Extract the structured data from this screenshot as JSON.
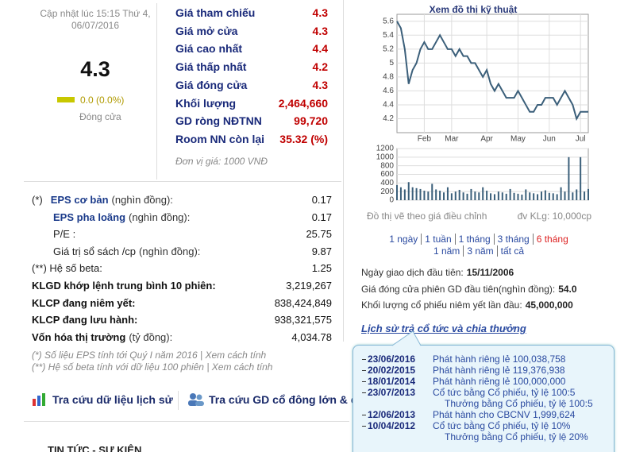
{
  "quote": {
    "updated": "Cập nhật lúc 15:15 Thứ 4, 06/07/2016",
    "price": "4.3",
    "change": "0.0 (0.0%)",
    "status": "Đóng cửa"
  },
  "prices": {
    "rows": [
      [
        "Giá tham chiếu",
        "4.3"
      ],
      [
        "Giá mở cửa",
        "4.3"
      ],
      [
        "Giá cao nhất",
        "4.4"
      ],
      [
        "Giá thấp nhất",
        "4.2"
      ],
      [
        "Giá đóng cửa",
        "4.3"
      ],
      [
        "Khối lượng",
        "2,464,660"
      ],
      [
        "GD ròng NĐTNN",
        "99,720"
      ],
      [
        "Room NN còn lại",
        "35.32 (%)"
      ]
    ],
    "unit_note": "Đơn vị giá: 1000 VNĐ"
  },
  "stats": {
    "rows": [
      {
        "prefix": "(*)",
        "label": "EPS cơ bản",
        "unit": "(nghìn đồng):",
        "value": "0.17"
      },
      {
        "label": "EPS pha loãng",
        "unit": "(nghìn đồng):",
        "value": "0.17"
      },
      {
        "label": "P/E :",
        "value": "25.75"
      },
      {
        "label": "Giá trị sổ sách /cp",
        "unit": "(nghìn đồng):",
        "value": "9.87"
      },
      {
        "label": "(**) Hệ số beta:",
        "value": "1.25"
      },
      {
        "label": "KLGD khớp lệnh trung bình 10 phiên:",
        "value": "3,219,267"
      },
      {
        "label": "KLCP đang niêm yết:",
        "value": "838,424,849"
      },
      {
        "label": "KLCP đang lưu hành:",
        "value": "938,321,575"
      },
      {
        "label": "Vốn hóa thị trường",
        "unit": "(tỷ đồng):",
        "value": "4,034.78"
      }
    ],
    "notes": [
      "(*) Số liệu EPS tính tới Quý I năm 2016 | Xem cách tính",
      "(**) Hệ số beta tính với dữ liệu 100 phiên | Xem cách tính"
    ]
  },
  "tools": [
    "Tra cứu dữ liệu lịch sử",
    "Tra cứu GD cổ đông lớn & cổ đông nội bộ"
  ],
  "news_heading": "TIN TỨC - SỰ KIỆN",
  "chart_title": "Xem đồ thị kỹ thuật",
  "chart_data": [
    {
      "type": "line",
      "color": "#3b5f7a",
      "categories": [
        null,
        null,
        null,
        null,
        null,
        null,
        null,
        "Feb",
        null,
        null,
        null,
        null,
        null,
        null,
        "Mar",
        null,
        null,
        null,
        null,
        null,
        null,
        null,
        null,
        "Apr",
        null,
        null,
        null,
        null,
        null,
        null,
        null,
        "May",
        null,
        null,
        null,
        null,
        null,
        null,
        null,
        "Jun",
        null,
        null,
        null,
        null,
        null,
        null,
        null,
        "Jul",
        null,
        null
      ],
      "values": [
        5.6,
        5.5,
        5.2,
        4.7,
        4.9,
        5.0,
        5.2,
        5.3,
        5.2,
        5.2,
        5.3,
        5.4,
        5.3,
        5.2,
        5.2,
        5.1,
        5.2,
        5.1,
        5.1,
        5.0,
        5.0,
        4.9,
        4.8,
        4.9,
        4.7,
        4.6,
        4.7,
        4.6,
        4.5,
        4.5,
        4.5,
        4.6,
        4.5,
        4.4,
        4.3,
        4.3,
        4.4,
        4.4,
        4.5,
        4.5,
        4.5,
        4.4,
        4.5,
        4.6,
        4.5,
        4.4,
        4.2,
        4.3,
        4.3,
        4.3
      ],
      "ylim": [
        4.0,
        5.7
      ],
      "yticks": [
        4.2,
        4.4,
        4.6,
        4.8,
        5,
        5.2,
        5.4,
        5.6
      ],
      "grid": true
    },
    {
      "type": "bar",
      "color": "#3b5f7a",
      "values": [
        350,
        300,
        250,
        420,
        300,
        280,
        260,
        220,
        200,
        380,
        250,
        220,
        180,
        300,
        160,
        200,
        240,
        180,
        150,
        260,
        200,
        180,
        300,
        220,
        160,
        140,
        200,
        180,
        150,
        260,
        170,
        150,
        130,
        250,
        180,
        160,
        140,
        200,
        230,
        170,
        160,
        140,
        300,
        200,
        1000,
        180,
        250,
        1000,
        200,
        260
      ],
      "ylim": [
        0,
        1200
      ],
      "yticks": [
        0,
        200,
        400,
        600,
        800,
        1000,
        1200
      ],
      "grid": true
    }
  ],
  "chart_notes": [
    "Đồ thị vẽ theo giá điều chỉnh",
    "đv KLg: 10,000cp"
  ],
  "periods": [
    [
      "1 ngày",
      "1 tuần",
      "1 tháng",
      "3 tháng",
      "6 tháng"
    ],
    [
      "1 năm",
      "3 năm",
      "tất cả"
    ]
  ],
  "listing": [
    [
      "Ngày giao dịch đầu tiên:",
      "15/11/2006"
    ],
    [
      "Giá đóng cửa phiên GD đầu tiên(nghìn đồng):",
      "54.0"
    ],
    [
      "Khối lượng cổ phiếu niêm yết lần đầu:",
      "45,000,000"
    ]
  ],
  "dividends": {
    "title": "Lịch sử trả cổ tức và chia thưởng",
    "items": [
      {
        "date": "23/06/2016",
        "text": "Phát hành riêng lẻ 100,038,758"
      },
      {
        "date": "20/02/2015",
        "text": "Phát hành riêng lẻ 119,376,938"
      },
      {
        "date": "18/01/2014",
        "text": "Phát hành riêng lẻ 100,000,000"
      },
      {
        "date": "23/07/2013",
        "text": "Cổ tức bằng Cổ phiếu, tỷ lệ 100:5",
        "extra": "Thưởng bằng Cổ phiếu, tỷ lệ 100:5"
      },
      {
        "date": "12/06/2013",
        "text": "Phát hành cho CBCNV 1,999,624"
      },
      {
        "date": "10/04/2012",
        "text": "Cổ tức bằng Cổ phiếu, tỷ lệ 10%",
        "extra": "Thưởng bằng Cổ phiếu, tỷ lệ 20%"
      }
    ]
  }
}
